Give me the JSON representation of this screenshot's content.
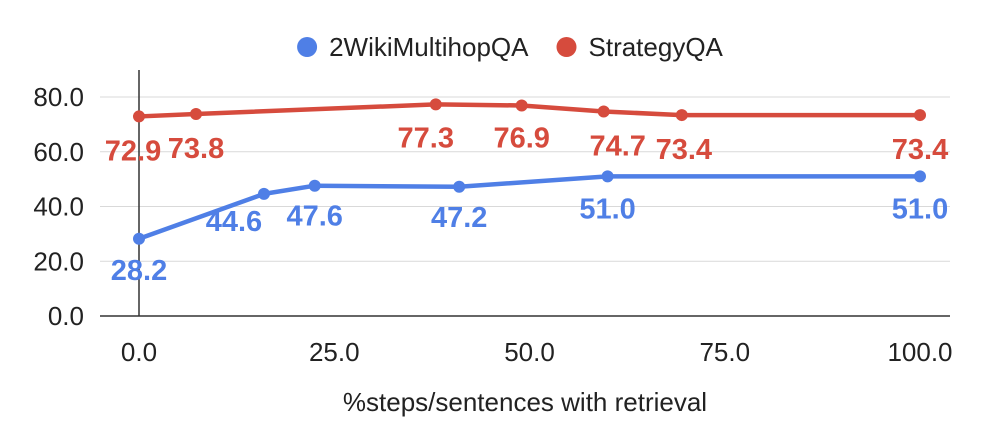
{
  "chart_data": {
    "type": "line",
    "xlabel": "%steps/sentences with retrieval",
    "ylabel": "",
    "xlim": [
      0,
      100
    ],
    "ylim": [
      0,
      90
    ],
    "x_ticks": [
      "0.0",
      "25.0",
      "50.0",
      "75.0",
      "100.0"
    ],
    "y_ticks": [
      "0.0",
      "20.0",
      "40.0",
      "60.0",
      "80.0"
    ],
    "grid": true,
    "legend_position": "top-center",
    "series": [
      {
        "name": "2WikiMultihopQA",
        "color": "#4f7fe6",
        "x": [
          0,
          16,
          22.5,
          41,
          60,
          100
        ],
        "values": [
          28.2,
          44.6,
          47.6,
          47.2,
          51.0,
          51.0
        ],
        "labels": [
          "28.2",
          "44.6",
          "47.6",
          "47.2",
          "51.0",
          "51.0"
        ]
      },
      {
        "name": "StrategyQA",
        "color": "#d64b3d",
        "x": [
          0,
          7.3,
          38,
          49,
          59.5,
          69.5,
          100
        ],
        "values": [
          72.9,
          73.8,
          77.3,
          76.9,
          74.7,
          73.4,
          73.4
        ],
        "labels": [
          "72.9",
          "73.8",
          "77.3",
          "76.9",
          "74.7",
          "73.4",
          "73.4"
        ]
      }
    ]
  }
}
